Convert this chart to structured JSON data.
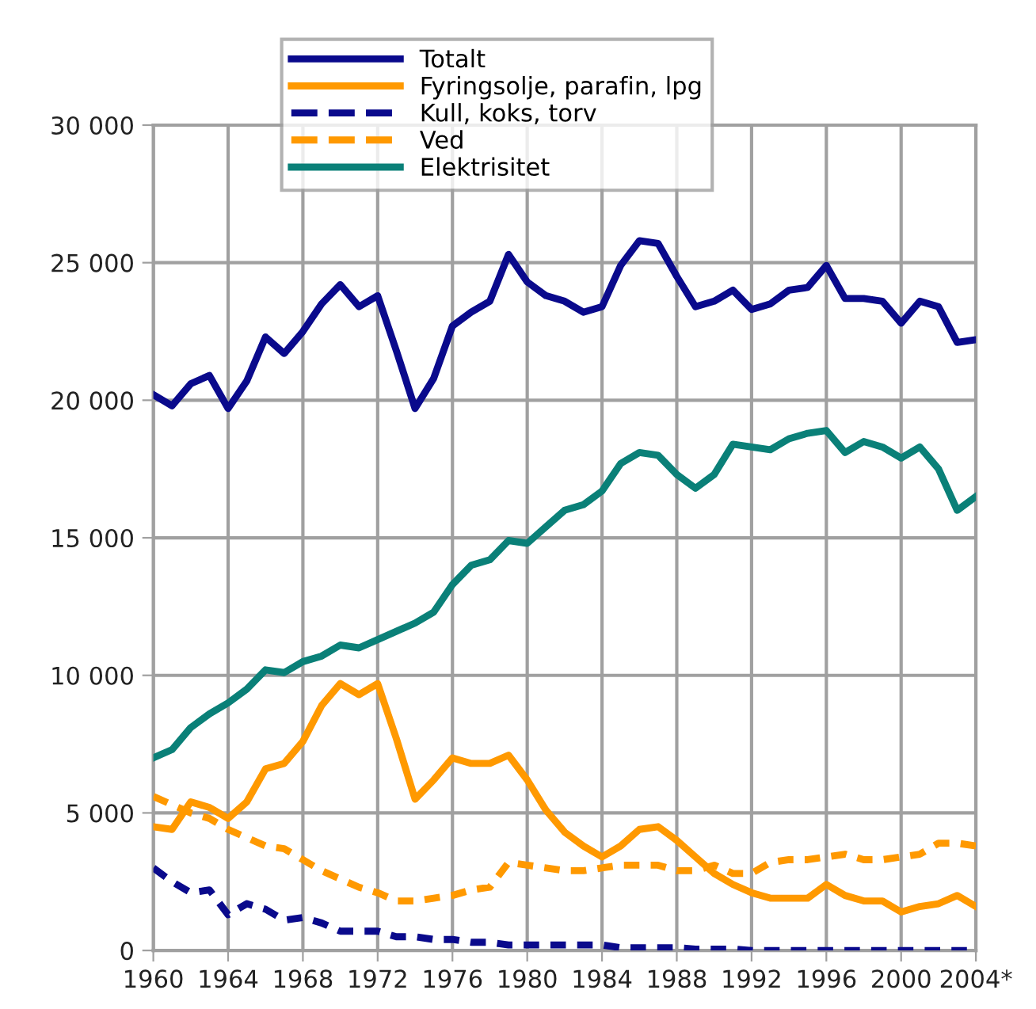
{
  "chart_data": {
    "type": "line",
    "x": [
      1960,
      1961,
      1962,
      1963,
      1964,
      1965,
      1966,
      1967,
      1968,
      1969,
      1970,
      1971,
      1972,
      1973,
      1974,
      1975,
      1976,
      1977,
      1978,
      1979,
      1980,
      1981,
      1982,
      1983,
      1984,
      1985,
      1986,
      1987,
      1988,
      1989,
      1990,
      1991,
      1992,
      1993,
      1994,
      1995,
      1996,
      1997,
      1998,
      1999,
      2000,
      2001,
      2002,
      2003,
      2004
    ],
    "series": [
      {
        "name": "Totalt",
        "color": "#0a0a8c",
        "line_style": "solid",
        "values": [
          20200,
          19800,
          20600,
          20900,
          19700,
          20700,
          22300,
          21700,
          22500,
          23500,
          24200,
          23400,
          23800,
          21800,
          19700,
          20800,
          22700,
          23200,
          23600,
          25300,
          24300,
          23800,
          23600,
          23200,
          23400,
          24900,
          25800,
          25700,
          24500,
          23400,
          23600,
          24000,
          23300,
          23500,
          24000,
          24100,
          24900,
          23700,
          23700,
          23600,
          22800,
          23600,
          23400,
          22100,
          22200
        ]
      },
      {
        "name": "Fyringsolje, parafin, lpg",
        "color": "#ff9900",
        "line_style": "solid",
        "values": [
          4500,
          4400,
          5400,
          5200,
          4800,
          5400,
          6600,
          6800,
          7600,
          8900,
          9700,
          9300,
          9700,
          7700,
          5500,
          6200,
          7000,
          6800,
          6800,
          7100,
          6200,
          5100,
          4300,
          3800,
          3400,
          3800,
          4400,
          4500,
          4000,
          3400,
          2800,
          2400,
          2100,
          1900,
          1900,
          1900,
          2400,
          2000,
          1800,
          1800,
          1400,
          1600,
          1700,
          2000,
          1600
        ]
      },
      {
        "name": "Kull, koks, torv",
        "color": "#0a0a8c",
        "line_style": "dashed",
        "values": [
          3000,
          2500,
          2100,
          2200,
          1300,
          1700,
          1500,
          1100,
          1200,
          1000,
          700,
          700,
          700,
          500,
          500,
          400,
          400,
          300,
          300,
          200,
          200,
          200,
          200,
          200,
          200,
          100,
          100,
          100,
          100,
          50,
          50,
          50,
          0,
          0,
          0,
          0,
          0,
          0,
          0,
          0,
          0,
          0,
          0,
          0,
          0
        ]
      },
      {
        "name": "Ved",
        "color": "#ff9900",
        "line_style": "dashed",
        "values": [
          5600,
          5300,
          5000,
          4800,
          4400,
          4100,
          3800,
          3700,
          3300,
          2900,
          2600,
          2300,
          2100,
          1800,
          1800,
          1900,
          2000,
          2200,
          2300,
          3200,
          3100,
          3000,
          2900,
          2900,
          3000,
          3100,
          3100,
          3100,
          2900,
          2900,
          3100,
          2800,
          2800,
          3200,
          3300,
          3300,
          3400,
          3500,
          3300,
          3300,
          3400,
          3500,
          3900,
          3900,
          3800
        ]
      },
      {
        "name": "Elektrisitet",
        "color": "#0a8078",
        "line_style": "solid",
        "values": [
          7000,
          7300,
          8100,
          8600,
          9000,
          9500,
          10200,
          10100,
          10500,
          10700,
          11100,
          11000,
          11300,
          11600,
          11900,
          12300,
          13300,
          14000,
          14200,
          14900,
          14800,
          15400,
          16000,
          16200,
          16700,
          17700,
          18100,
          18000,
          17300,
          16800,
          17300,
          18400,
          18300,
          18200,
          18600,
          18800,
          18900,
          18100,
          18500,
          18300,
          17900,
          18300,
          17500,
          16000,
          16500
        ]
      }
    ],
    "xlim": [
      1960,
      2004
    ],
    "xticks": [
      1960,
      1964,
      1968,
      1972,
      1976,
      1980,
      1984,
      1988,
      1992,
      1996,
      2000,
      {
        "value": 2004,
        "label": "2004*"
      }
    ],
    "ylim": [
      0,
      30000
    ],
    "yticks": [
      0,
      {
        "value": 5000,
        "label": "5 000"
      },
      {
        "value": 10000,
        "label": "10 000"
      },
      {
        "value": 15000,
        "label": "15 000"
      },
      {
        "value": 20000,
        "label": "20 000"
      },
      {
        "value": 25000,
        "label": "25 000"
      },
      {
        "value": 30000,
        "label": "30 000"
      }
    ],
    "grid": true,
    "legend": "top",
    "marker": "none"
  }
}
